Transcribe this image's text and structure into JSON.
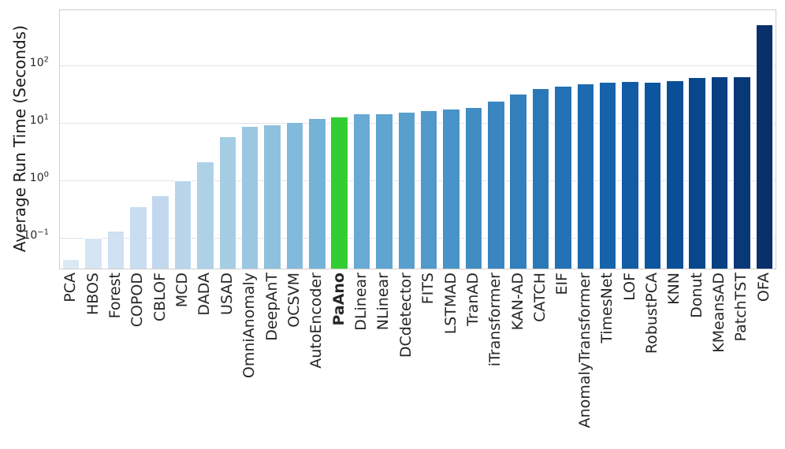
{
  "chart_data": {
    "type": "bar",
    "title": "",
    "xlabel": "",
    "ylabel": "Average Run Time (Seconds)",
    "yscale": "log",
    "ylim": [
      0.0286,
      929
    ],
    "grid": "horizontal-major-only",
    "legend": "none",
    "yticks": [
      {
        "base": "10",
        "exp": "2",
        "value": 100
      },
      {
        "base": "10",
        "exp": "1",
        "value": 10
      },
      {
        "base": "10",
        "exp": "0",
        "value": 1
      },
      {
        "base": "10",
        "exp": "−1",
        "value": 0.1
      }
    ],
    "highlight_color": "#32cd32",
    "bars": [
      {
        "label": "PCA",
        "value": 0.042,
        "color": "#dbe9f6",
        "highlight": false
      },
      {
        "label": "HBOS",
        "value": 0.097,
        "color": "#d5e5f4",
        "highlight": false
      },
      {
        "label": "Forest",
        "value": 0.132,
        "color": "#cfe1f2",
        "highlight": false
      },
      {
        "label": "COPOD",
        "value": 0.35,
        "color": "#c9ddf0",
        "highlight": false
      },
      {
        "label": "CBLOF",
        "value": 0.55,
        "color": "#c2d8ee",
        "highlight": false
      },
      {
        "label": "MCD",
        "value": 0.98,
        "color": "#b9d5ea",
        "highlight": false
      },
      {
        "label": "DADA",
        "value": 2.1,
        "color": "#afd1e7",
        "highlight": false
      },
      {
        "label": "USAD",
        "value": 5.8,
        "color": "#a5cde3",
        "highlight": false
      },
      {
        "label": "OmniAnomaly",
        "value": 8.9,
        "color": "#9bc8e0",
        "highlight": false
      },
      {
        "label": "DeepAnT",
        "value": 9.5,
        "color": "#8fc1dd",
        "highlight": false
      },
      {
        "label": "OCSVM",
        "value": 10.4,
        "color": "#82badb",
        "highlight": false
      },
      {
        "label": "AutoEncoder",
        "value": 12.1,
        "color": "#75b2d8",
        "highlight": false
      },
      {
        "label": "PaAno",
        "value": 13.1,
        "color": "#32cd32",
        "highlight": true
      },
      {
        "label": "DLinear",
        "value": 14.8,
        "color": "#68aad4",
        "highlight": false
      },
      {
        "label": "NLinear",
        "value": 14.9,
        "color": "#60a5d1",
        "highlight": false
      },
      {
        "label": "DCdetector",
        "value": 15.8,
        "color": "#589fce",
        "highlight": false
      },
      {
        "label": "FITS",
        "value": 16.7,
        "color": "#5099ca",
        "highlight": false
      },
      {
        "label": "LSTMAD",
        "value": 17.9,
        "color": "#4893c7",
        "highlight": false
      },
      {
        "label": "TranAD",
        "value": 18.7,
        "color": "#418dc3",
        "highlight": false
      },
      {
        "label": "iTransformer",
        "value": 24.4,
        "color": "#3a86c0",
        "highlight": false
      },
      {
        "label": "KAN-AD",
        "value": 32,
        "color": "#327fbc",
        "highlight": false
      },
      {
        "label": "CATCH",
        "value": 40,
        "color": "#2b78b8",
        "highlight": false
      },
      {
        "label": "EIF",
        "value": 45,
        "color": "#2471b5",
        "highlight": false
      },
      {
        "label": "AnomalyTransformer",
        "value": 49,
        "color": "#1d6ab0",
        "highlight": false
      },
      {
        "label": "TimesNet",
        "value": 51.5,
        "color": "#1763ab",
        "highlight": false
      },
      {
        "label": "LOF",
        "value": 54.5,
        "color": "#115ca5",
        "highlight": false
      },
      {
        "label": "RobustPCA",
        "value": 52,
        "color": "#0c56a0",
        "highlight": false
      },
      {
        "label": "KNN",
        "value": 55,
        "color": "#094f98",
        "highlight": false
      },
      {
        "label": "Donut",
        "value": 63,
        "color": "#08478d",
        "highlight": false
      },
      {
        "label": "KMeansAD",
        "value": 64.5,
        "color": "#084082",
        "highlight": false
      },
      {
        "label": "PatchTST",
        "value": 66,
        "color": "#083877",
        "highlight": false
      },
      {
        "label": "OFA",
        "value": 534,
        "color": "#08306b",
        "highlight": false
      }
    ]
  },
  "colors": {
    "background": "#ffffff",
    "spine": "#cfcfcf",
    "gridline": "#e2e2e2",
    "tick_text": "#262626",
    "axis_label_text": "#1a1a1a",
    "bar_edge": "#ffffff"
  }
}
